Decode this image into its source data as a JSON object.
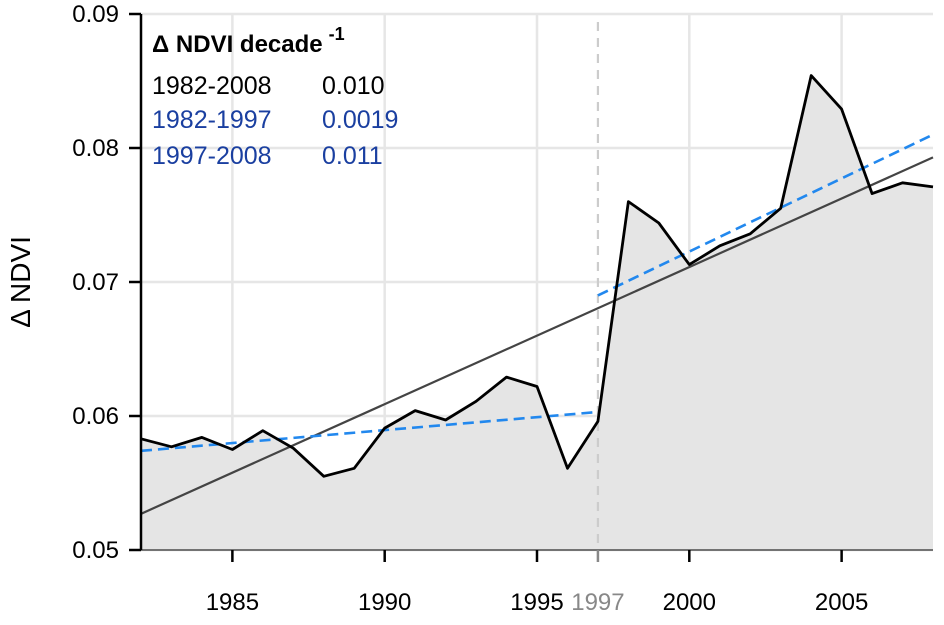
{
  "colors": {
    "background": "#ffffff",
    "area_fill": "#e5e5e5",
    "grid": "#e6e6e6",
    "observed": "#000000",
    "trend_full": "#444444",
    "trend_segments": "#2288ee",
    "breakpoint": "#cccccc",
    "legend_black": "#000000",
    "legend_blue": "#1a3fa0",
    "breakpoint_label": "#888888"
  },
  "chart_data": {
    "type": "area",
    "title": "",
    "xlabel": "",
    "ylabel": "Δ NDVI",
    "xlim": [
      1982,
      2008
    ],
    "ylim": [
      0.05,
      0.09
    ],
    "grid": true,
    "x_ticks": [
      1985,
      1990,
      1995,
      2000,
      2005
    ],
    "y_ticks": [
      0.05,
      0.06,
      0.07,
      0.08,
      0.09
    ],
    "y_tick_labels": [
      "0.05",
      "0.06",
      "0.07",
      "0.08",
      "0.09"
    ],
    "breakpoint": {
      "x": 1997,
      "label": "1997"
    },
    "series": [
      {
        "name": "",
        "kind": "observed",
        "x": [
          1982,
          1983,
          1984,
          1985,
          1986,
          1987,
          1988,
          1989,
          1990,
          1991,
          1992,
          1993,
          1994,
          1995,
          1996,
          1997,
          1998,
          1999,
          2000,
          2001,
          2002,
          2003,
          2004,
          2005,
          2006,
          2007,
          2008
        ],
        "values": [
          0.0583,
          0.0577,
          0.0584,
          0.0575,
          0.0589,
          0.0576,
          0.0555,
          0.0561,
          0.0591,
          0.0604,
          0.0597,
          0.0611,
          0.0629,
          0.0622,
          0.0561,
          0.0596,
          0.076,
          0.0744,
          0.0713,
          0.0727,
          0.0736,
          0.0755,
          0.0854,
          0.0829,
          0.0766,
          0.0774,
          0.0771
        ]
      }
    ],
    "trend_lines": [
      {
        "period": "1982-2008",
        "x": [
          1982,
          2008
        ],
        "values": [
          0.0527,
          0.0793
        ]
      },
      {
        "period": "1982-1997",
        "x": [
          1982,
          1997
        ],
        "values": [
          0.0574,
          0.0603
        ]
      },
      {
        "period": "1997-2008",
        "x": [
          1997,
          2008
        ],
        "values": [
          0.069,
          0.081
        ]
      }
    ],
    "legend": {
      "position": "top-left",
      "title": "Δ NDVI decade",
      "title_superscript": "-1",
      "rows": [
        {
          "period": "1982-2008",
          "value": "0.010",
          "color": "black"
        },
        {
          "period": "1982-1997",
          "value": "0.0019",
          "color": "blue"
        },
        {
          "period": "1997-2008",
          "value": "0.011",
          "color": "blue"
        }
      ]
    }
  }
}
